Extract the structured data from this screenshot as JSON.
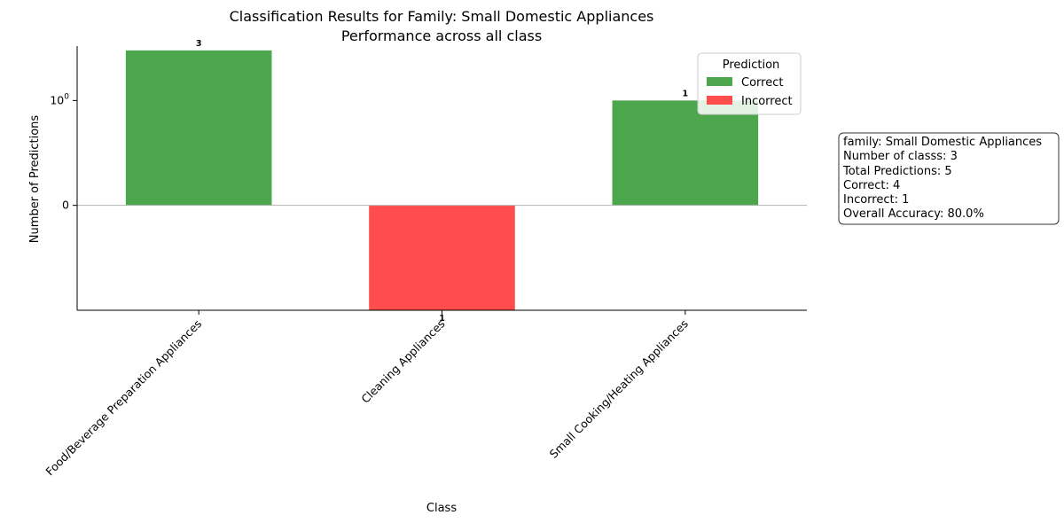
{
  "chart_data": {
    "type": "bar",
    "title": "Classification Results for Family: Small Domestic Appliances",
    "subtitle": "Performance across all class",
    "xlabel": "Class",
    "ylabel": "Number of Predictions",
    "y_scale": "symlog",
    "ylim": [
      -1,
      3.3
    ],
    "y_ticks": [
      {
        "value": 0,
        "label": "0"
      },
      {
        "value": 1,
        "label": "10^0"
      }
    ],
    "categories": [
      "Food/Beverage Preparation Appliances",
      "Cleaning Appliances",
      "Small Cooking/Heating Appliances"
    ],
    "series": [
      {
        "name": "Correct",
        "color": "#4ca64c",
        "values": [
          3,
          0,
          1
        ]
      },
      {
        "name": "Incorrect",
        "color": "#ff4d4d",
        "values": [
          0,
          1,
          0
        ]
      }
    ],
    "bars": [
      {
        "category": "Food/Beverage Preparation Appliances",
        "series": "Correct",
        "value": 3,
        "direction": "up",
        "label": "3"
      },
      {
        "category": "Cleaning Appliances",
        "series": "Incorrect",
        "value": 1,
        "direction": "down",
        "label": "1"
      },
      {
        "category": "Small Cooking/Heating Appliances",
        "series": "Correct",
        "value": 1,
        "direction": "up",
        "label": "1"
      }
    ],
    "legend": {
      "title": "Prediction",
      "placement": "top-right",
      "entries": [
        "Correct",
        "Incorrect"
      ]
    },
    "info_box": {
      "lines": [
        "family: Small Domestic Appliances",
        "Number of classs: 3",
        "Total Predictions: 5",
        "Correct: 4",
        "Incorrect: 1",
        "Overall Accuracy: 80.0%"
      ]
    },
    "grid": false
  }
}
